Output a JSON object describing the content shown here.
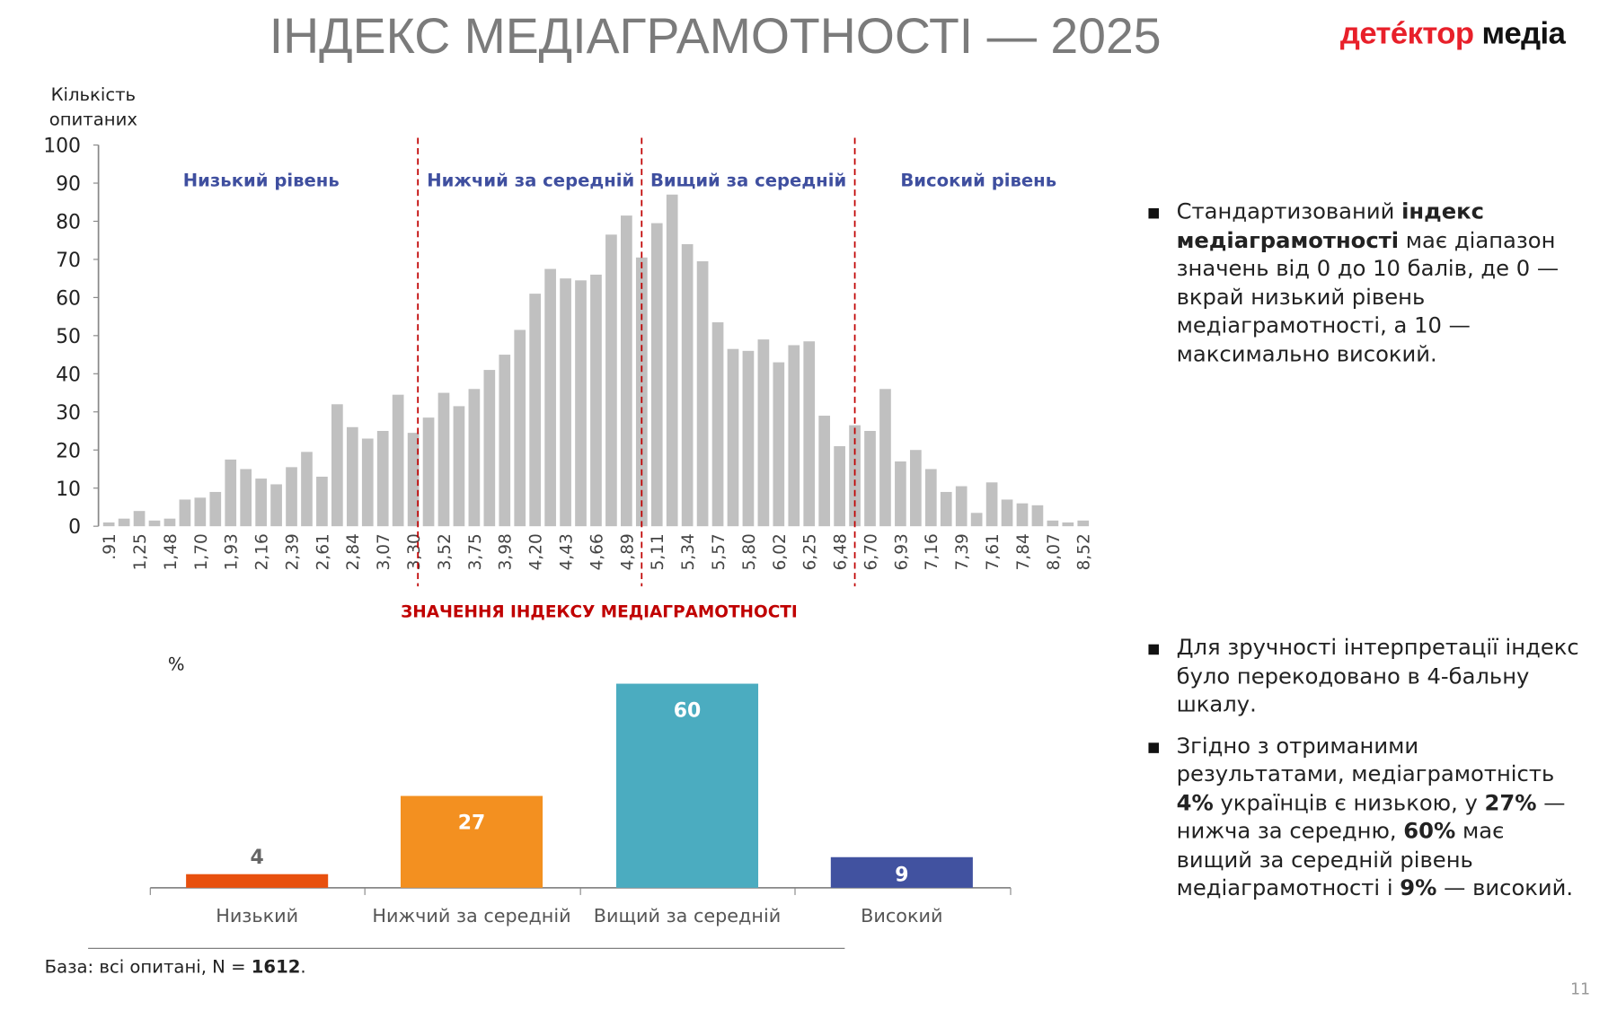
{
  "header": {
    "title": "ІНДЕКС МЕДІАГРАМОТНОСТІ — 2025",
    "logo_part1": "детéктор",
    "logo_part2": "медіа"
  },
  "chart_data": [
    {
      "type": "bar",
      "ylabel": "Кількість опитаних",
      "xlabel": "ЗНАЧЕННЯ ІНДЕКСУ МЕДІАГРАМОТНОСТІ",
      "ylim": [
        0,
        100
      ],
      "yticks": [
        0,
        10,
        20,
        30,
        40,
        50,
        60,
        70,
        80,
        90,
        100
      ],
      "tick_labels": [
        ".91",
        "1,25",
        "1,48",
        "1,70",
        "1,93",
        "2,16",
        "2,39",
        "2,61",
        "2,84",
        "3,07",
        "3,30",
        "3,52",
        "3,75",
        "3,98",
        "4,20",
        "4,43",
        "4,66",
        "4,89",
        "5,11",
        "5,34",
        "5,57",
        "5,80",
        "6,02",
        "6,25",
        "6,48",
        "6,70",
        "6,93",
        "7,16",
        "7,39",
        "7,61",
        "7,84",
        "8,07",
        "8,52"
      ],
      "values": [
        1,
        2,
        4,
        1.5,
        2,
        7,
        7.5,
        9,
        17.5,
        15,
        12.5,
        11,
        15.5,
        19.5,
        13,
        32,
        26,
        23,
        25,
        34.5,
        24.5,
        28.5,
        35,
        31.5,
        36,
        41,
        45,
        51.5,
        61,
        67.5,
        65,
        64.5,
        66,
        76.5,
        81.5,
        70.5,
        79.5,
        87,
        74,
        69.5,
        53.5,
        46.5,
        46,
        49,
        43,
        47.5,
        48.5,
        29,
        21,
        26.5,
        25,
        36,
        17,
        20,
        15,
        9,
        10.5,
        3.5,
        11.5,
        7,
        6,
        5.5,
        1.5,
        1,
        1.5
      ],
      "bar_color": "#c0c0c0",
      "threshold_color": "#c00000",
      "regions": [
        "Низький рівень",
        "Нижчий за середній",
        "Вищий за середній",
        "Високий рівень"
      ],
      "region_color": "#3f4f9f",
      "grid": false
    },
    {
      "type": "bar",
      "ylabel": "%",
      "categories": [
        "Низький",
        "Нижчий за середній",
        "Вищий за середній",
        "Високий"
      ],
      "values": [
        4,
        27,
        60,
        9
      ],
      "colors": [
        "#e8500e",
        "#f39020",
        "#4bacc0",
        "#4152a0"
      ],
      "grid": false
    }
  ],
  "notes": {
    "b1": {
      "t1": "Стандартизований ",
      "b1": "індекс медіаграмотності",
      "t2": " має діапазон значень від 0 до 10 балів, де 0 — вкрай низький рівень медіаграмотності, а 10 — максимально високий."
    },
    "b2": {
      "t1": "Для зручності інтерпретації індекс було перекодовано в 4-бальну шкалу."
    },
    "b3": {
      "t1": "Згідно з отриманими результатами, медіаграмотність ",
      "b1": "4%",
      "t2": " українців є низькою, у ",
      "b2": "27%",
      "t3": " — нижча за середню, ",
      "b3": "60%",
      "t4": " має вищий за середній рівень медіаграмотності і ",
      "b4": "9%",
      "t5": " — високий."
    }
  },
  "footer": {
    "text": "База: всі опитані, N = ",
    "n": "1612",
    "end": "."
  },
  "page_number": "11"
}
